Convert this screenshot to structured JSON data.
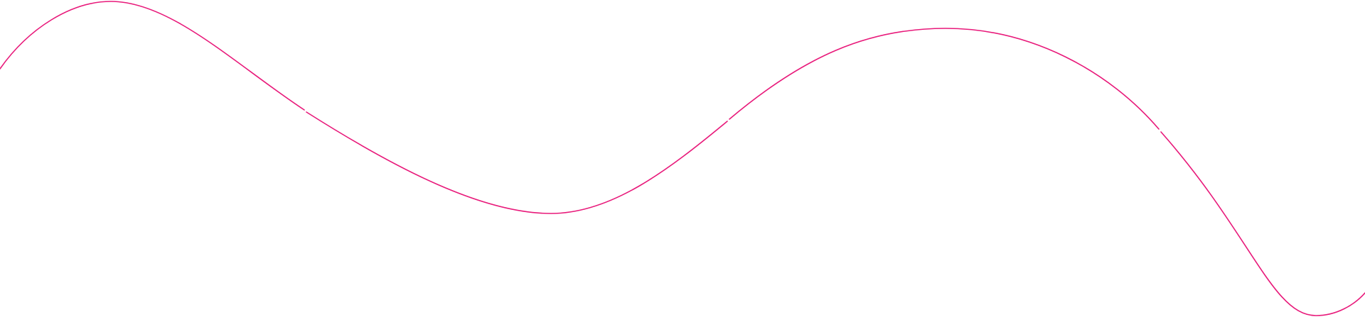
{
  "decoration": {
    "icon": "wave-line",
    "stroke_color": "#e8197a",
    "background_color": "#ffffff"
  }
}
